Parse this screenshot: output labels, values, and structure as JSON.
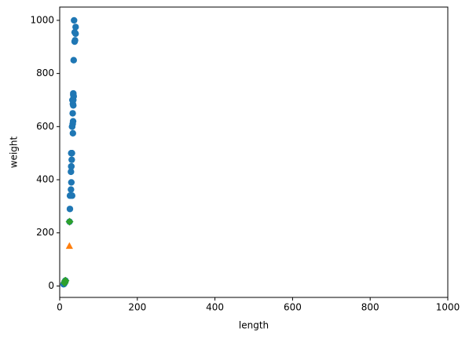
{
  "chart_data": {
    "type": "scatter",
    "x_label": "length",
    "y_label": "weight",
    "xlim": [
      0,
      1000
    ],
    "ylim": [
      -43,
      1050
    ],
    "xticks": [
      0,
      200,
      400,
      600,
      800,
      1000
    ],
    "yticks": [
      0,
      200,
      400,
      600,
      800,
      1000
    ],
    "grid": false,
    "series": [
      {
        "color": "#1f77b4",
        "marker": "circle",
        "x": [
          25.4,
          26.3,
          26.5,
          29.0,
          29.0,
          29.7,
          29.7,
          30.0,
          30.0,
          30.7,
          31.0,
          31.0,
          31.5,
          32.0,
          32.0,
          32.0,
          33.0,
          33.0,
          33.5,
          33.5,
          34.0,
          34.0,
          34.5,
          35.0,
          35.0,
          35.0,
          35.0,
          36.0,
          36.0,
          37.0,
          38.5,
          38.5,
          39.5,
          41.0,
          41.0,
          9.8,
          10.5,
          10.6,
          11.0,
          11.2,
          11.3,
          11.8,
          12.0,
          12.2,
          12.4,
          13.0,
          14.3,
          15.0
        ],
        "values": [
          242,
          290,
          340,
          363,
          430,
          450,
          500,
          390,
          450,
          500,
          475,
          500,
          500,
          340,
          600,
          600,
          700,
          700,
          610,
          650,
          575,
          685,
          620,
          680,
          700,
          725,
          720,
          714,
          850,
          1000,
          920,
          955,
          925,
          975,
          950,
          6.7,
          7.5,
          7.0,
          9.7,
          9.8,
          8.7,
          10.0,
          9.8,
          12.2,
          13.4,
          12.2,
          19.7,
          19.9
        ]
      },
      {
        "color": "#ff7f0e",
        "marker": "triangle",
        "x": [
          25
        ],
        "values": [
          150
        ]
      },
      {
        "color": "#2ca02c",
        "marker": "diamond",
        "x": [
          25.4,
          15.0,
          14.3,
          13.0,
          12.2
        ],
        "values": [
          242,
          19.9,
          19.7,
          12.2,
          12.2
        ]
      }
    ]
  }
}
